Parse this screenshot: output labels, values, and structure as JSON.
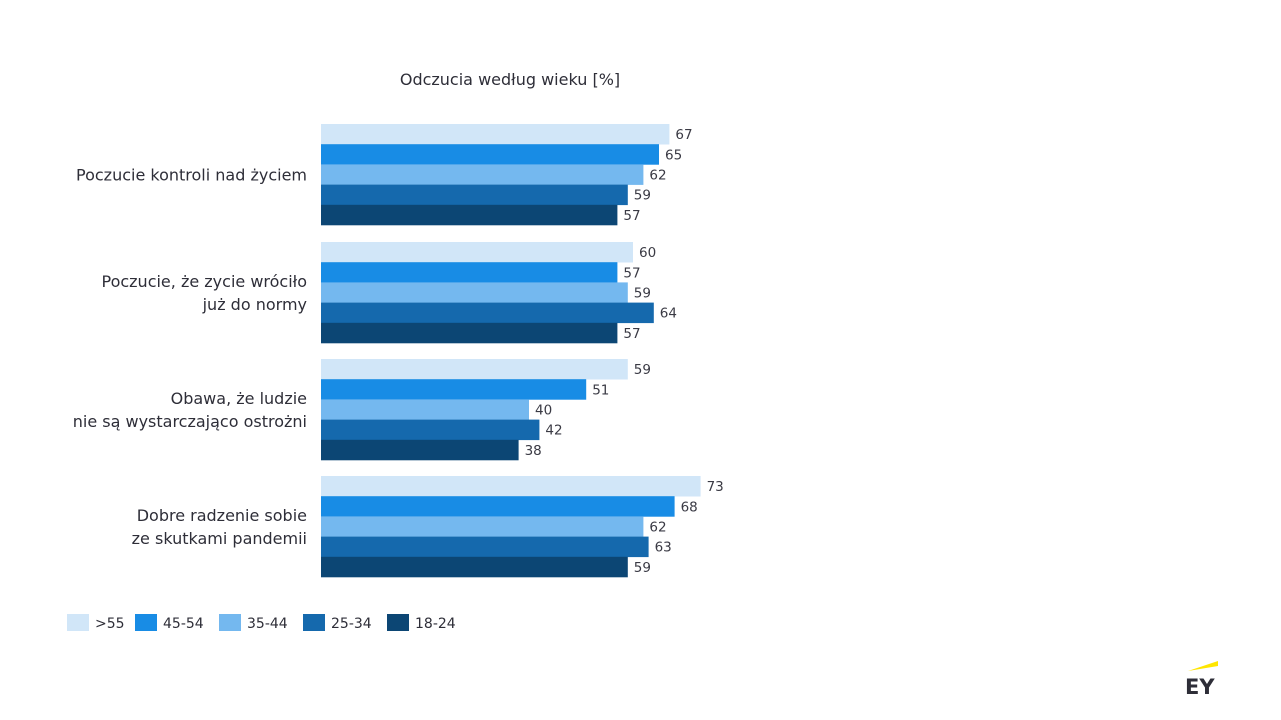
{
  "chart_data": {
    "type": "bar",
    "orientation": "horizontal",
    "title": "Odczucia według wieku [%]",
    "categories": [
      [
        "Poczucie kontroli nad życiem"
      ],
      [
        "Poczucie, że zycie wróciło",
        "już do normy"
      ],
      [
        "Obawa, że ludzie",
        "nie są wystarczająco ostrożni"
      ],
      [
        "Dobre radzenie sobie",
        "ze skutkami pandemii"
      ]
    ],
    "series": [
      {
        "name": ">55",
        "color": "#d1e6f8",
        "values": [
          67,
          60,
          59,
          73
        ]
      },
      {
        "name": "45-54",
        "color": "#188ce5",
        "values": [
          65,
          57,
          51,
          68
        ]
      },
      {
        "name": "35-44",
        "color": "#74b8ef",
        "values": [
          62,
          59,
          40,
          62
        ]
      },
      {
        "name": "25-34",
        "color": "#1569ad",
        "values": [
          59,
          64,
          42,
          63
        ]
      },
      {
        "name": "18-24",
        "color": "#0c4674",
        "values": [
          57,
          57,
          38,
          59
        ]
      }
    ],
    "xlim": [
      0,
      100
    ],
    "xlabel": "",
    "ylabel": "",
    "grid": false,
    "legend": "bottom-left"
  },
  "brand": {
    "logo_text": "EY",
    "accent_color": "#ffe600"
  }
}
